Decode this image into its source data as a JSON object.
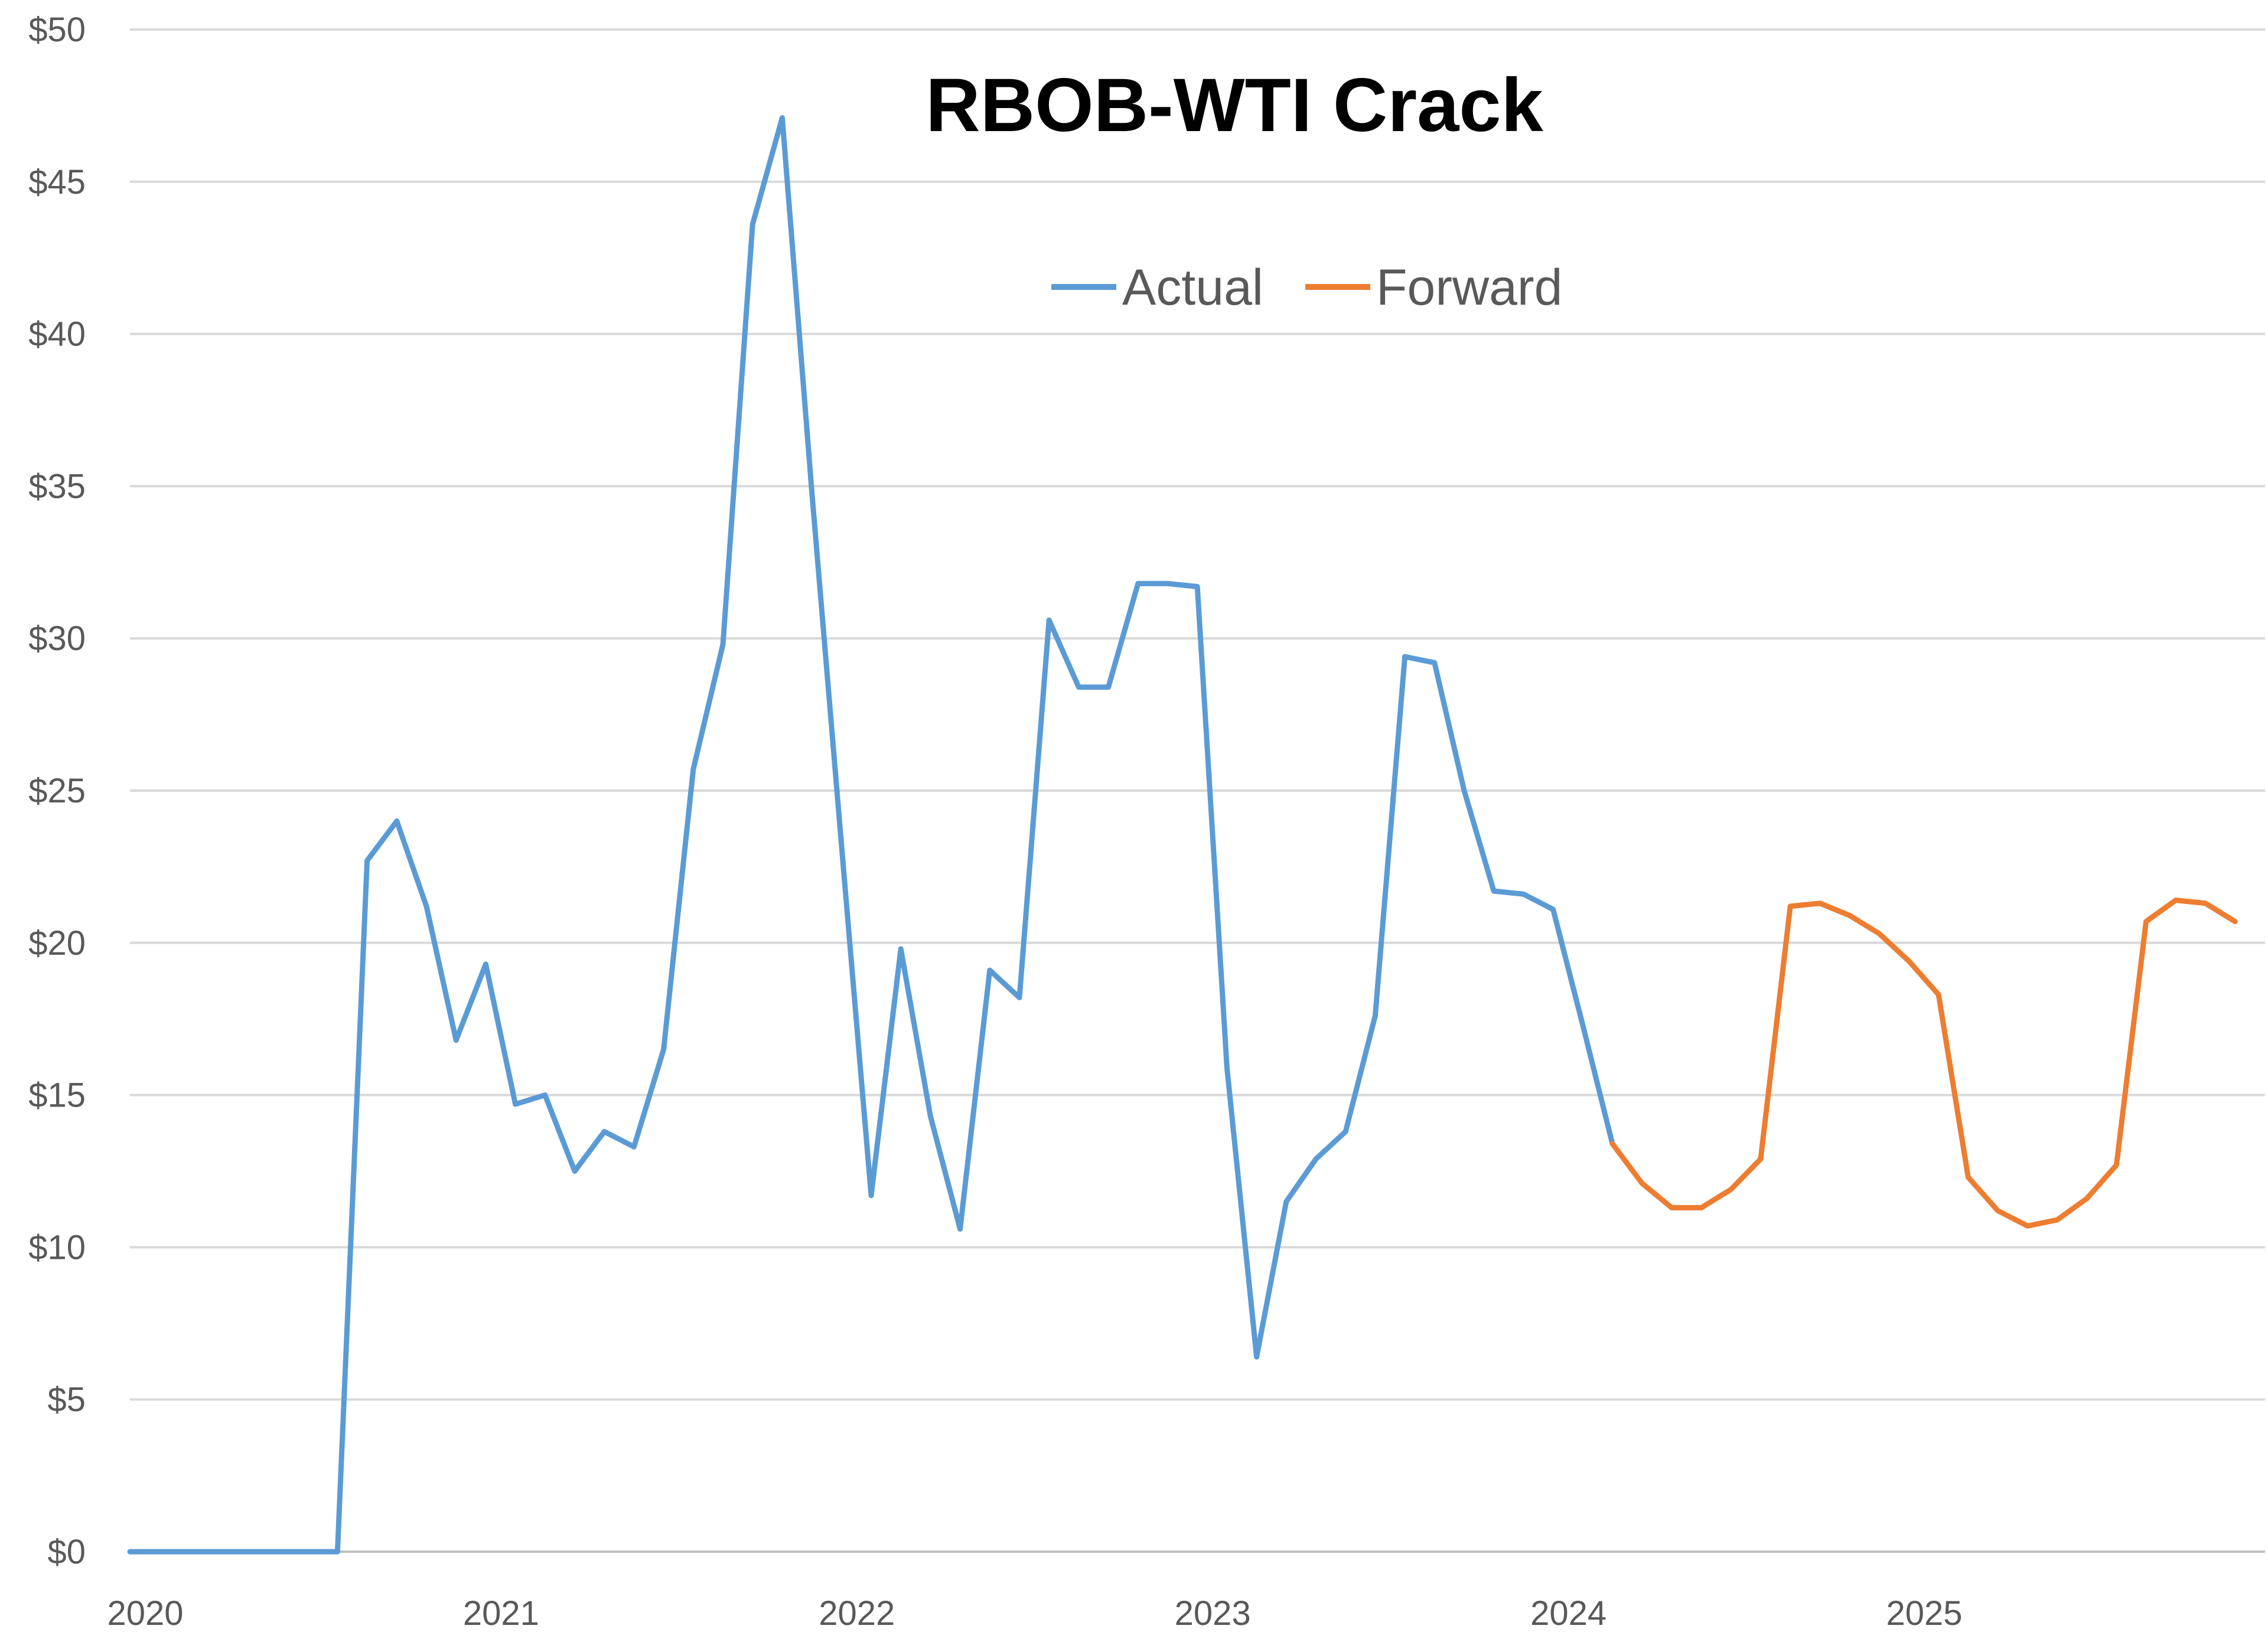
{
  "chart_data": {
    "type": "line",
    "title": "RBOB-WTI Crack",
    "xlabel": "",
    "ylabel": "",
    "ylim": [
      0,
      50
    ],
    "xlim": [
      2020.0,
      2025.9167
    ],
    "y_ticks": [
      "$0",
      "$5",
      "$10",
      "$15",
      "$20",
      "$25",
      "$30",
      "$35",
      "$40",
      "$45",
      "$50"
    ],
    "y_tick_values": [
      0,
      5,
      10,
      15,
      20,
      25,
      30,
      35,
      40,
      45,
      50
    ],
    "x_ticks": [
      "2020",
      "2021",
      "2022",
      "2023",
      "2024",
      "2025"
    ],
    "x_tick_values": [
      2020,
      2021,
      2022,
      2023,
      2024,
      2025
    ],
    "grid": true,
    "legend_position": "top-center",
    "series": [
      {
        "name": "Actual",
        "color": "#5B9BD5",
        "x": [
          "2020-01",
          "2020-02",
          "2020-03",
          "2020-04",
          "2020-05",
          "2020-06",
          "2020-07",
          "2020-08",
          "2020-09",
          "2020-10",
          "2020-11",
          "2020-12",
          "2021-01",
          "2021-02",
          "2021-03",
          "2021-04",
          "2021-05",
          "2021-06",
          "2021-07",
          "2021-08",
          "2021-09",
          "2021-10",
          "2021-11",
          "2021-12",
          "2022-01",
          "2022-02",
          "2022-03",
          "2022-04",
          "2022-05",
          "2022-06",
          "2022-07",
          "2022-08",
          "2022-09",
          "2022-10",
          "2022-11",
          "2022-12",
          "2023-01",
          "2023-02",
          "2023-03",
          "2023-04",
          "2023-05",
          "2023-06",
          "2023-07",
          "2023-08",
          "2023-09",
          "2023-10",
          "2023-11",
          "2023-12",
          "2024-01",
          "2024-02",
          "2024-03"
        ],
        "values": [
          0,
          0,
          0,
          0,
          0,
          0,
          0,
          0,
          22.7,
          24.0,
          21.2,
          16.8,
          19.3,
          14.7,
          15.0,
          12.5,
          13.8,
          13.3,
          16.5,
          25.7,
          29.8,
          43.6,
          47.1,
          34.8,
          23.2,
          11.7,
          19.8,
          14.3,
          10.6,
          19.1,
          18.2,
          30.6,
          28.4,
          28.4,
          31.8,
          31.8,
          31.7,
          15.9,
          6.4,
          11.5,
          12.9,
          13.8,
          17.6,
          29.4,
          29.2,
          25.0,
          21.7,
          21.6,
          21.1,
          17.3,
          13.4
        ]
      },
      {
        "name": "Forward",
        "color": "#ED7D31",
        "x": [
          "2024-03",
          "2024-04",
          "2024-05",
          "2024-06",
          "2024-07",
          "2024-08",
          "2024-09",
          "2024-10",
          "2024-11",
          "2024-12",
          "2025-01",
          "2025-02",
          "2025-03",
          "2025-04",
          "2025-05",
          "2025-06",
          "2025-07",
          "2025-08",
          "2025-09",
          "2025-10",
          "2025-11",
          "2025-12"
        ],
        "values": [
          13.4,
          12.1,
          11.3,
          11.3,
          11.9,
          12.9,
          21.2,
          21.3,
          20.9,
          20.3,
          19.4,
          18.3,
          12.3,
          11.2,
          10.7,
          10.9,
          11.6,
          12.7,
          20.7,
          21.4,
          21.3,
          20.7
        ]
      }
    ]
  }
}
